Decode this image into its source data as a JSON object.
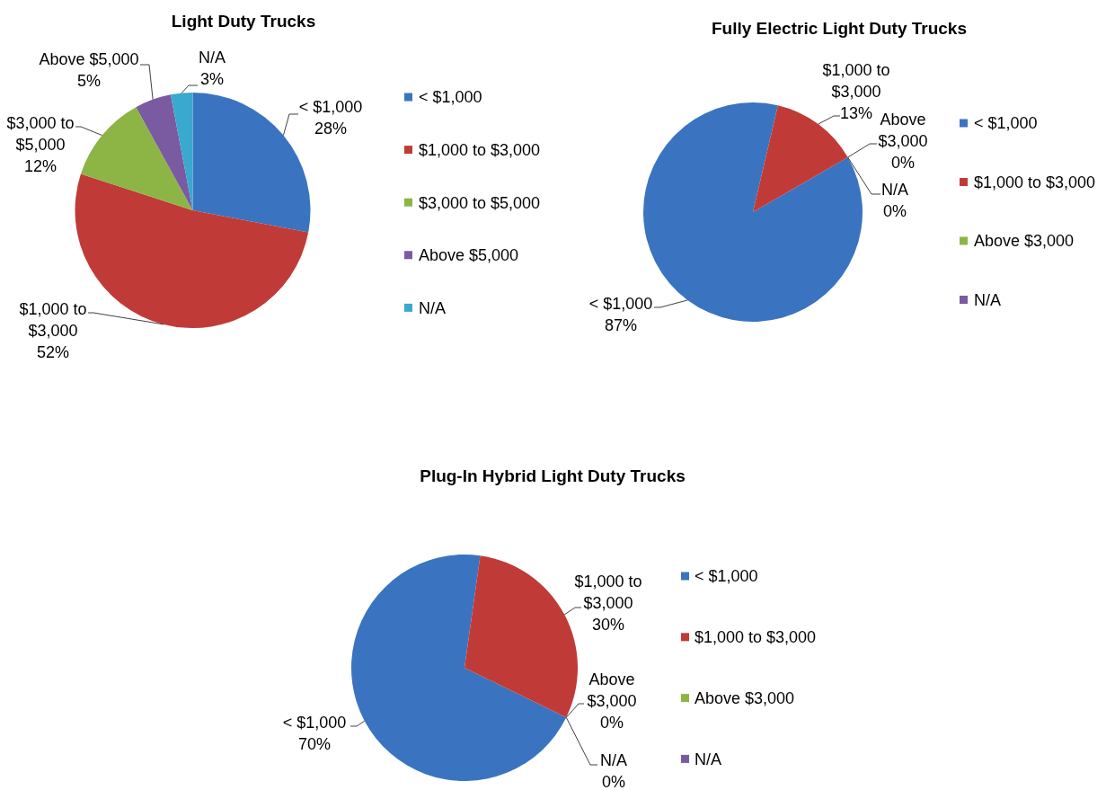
{
  "chart_data": [
    {
      "type": "pie",
      "title": "Light Duty Trucks",
      "categories": [
        "< $1,000",
        "$1,000 to $3,000",
        "$3,000 to $5,000",
        "Above $5,000",
        "N/A"
      ],
      "values": [
        28,
        52,
        12,
        5,
        3
      ],
      "value_labels": [
        "28%",
        "52%",
        "12%",
        "5%",
        "3%"
      ],
      "colors": [
        "#3a74c0",
        "#c03b37",
        "#8db546",
        "#7a5aa1",
        "#39a9cf"
      ],
      "legend": "right"
    },
    {
      "type": "pie",
      "title": "Fully Electric Light Duty Trucks",
      "categories": [
        "< $1,000",
        "$1,000 to $3,000",
        "Above $3,000",
        "N/A"
      ],
      "values": [
        87,
        13,
        0,
        0
      ],
      "value_labels": [
        "87%",
        "13%",
        "0%",
        "0%"
      ],
      "colors": [
        "#3a74c0",
        "#c03b37",
        "#8db546",
        "#7a5aa1"
      ],
      "legend": "right"
    },
    {
      "type": "pie",
      "title": "Plug-In Hybrid Light Duty Trucks",
      "categories": [
        "< $1,000",
        "$1,000 to $3,000",
        "Above $3,000",
        "N/A"
      ],
      "values": [
        70,
        30,
        0,
        0
      ],
      "value_labels": [
        "70%",
        "30%",
        "0%",
        "0%"
      ],
      "colors": [
        "#3a74c0",
        "#c03b37",
        "#8db546",
        "#7a5aa1"
      ],
      "legend": "right"
    }
  ]
}
